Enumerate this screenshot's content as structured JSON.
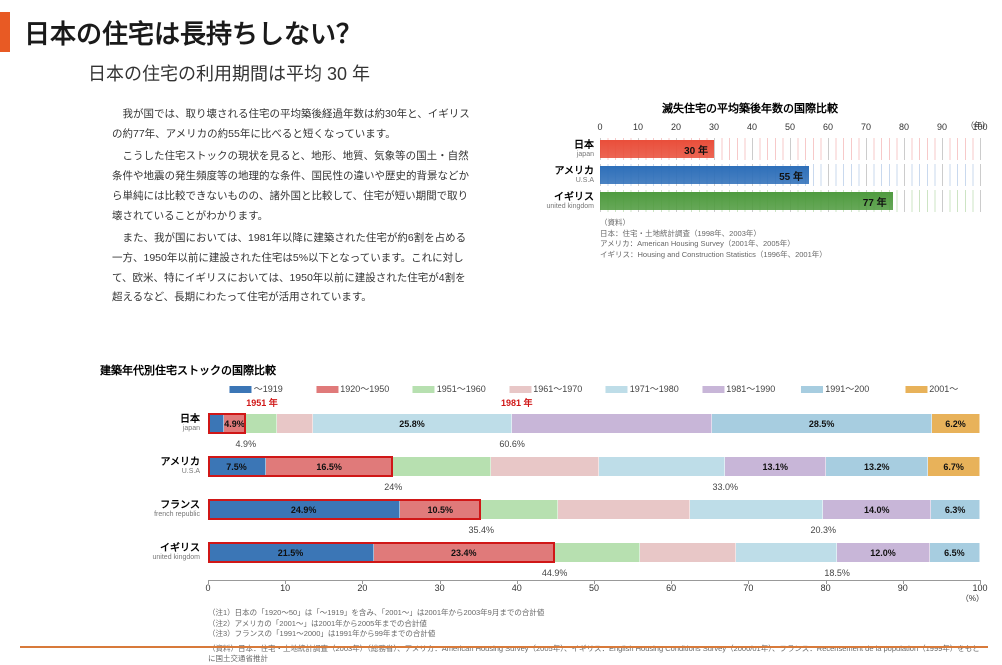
{
  "title": "日本の住宅は長持ちしない？",
  "subtitle": "日本の住宅の利用期間は平均 30 年",
  "paragraphs": [
    "我が国では、取り壊される住宅の平均築後経過年数は約30年と、イギリスの約77年、アメリカの約55年に比べると短くなっています。",
    "こうした住宅ストックの現状を見ると、地形、地質、気象等の国土・自然条件や地震の発生頻度等の地理的な条件、国民性の違いや歴史的背景などから単純には比較できないものの、諸外国と比較して、住宅が短い期間で取り壊されていることがわかります。",
    "また、我が国においては、1981年以降に建築された住宅が約6割を占める一方、1950年以前に建設された住宅は5%以下となっています。これに対して、欧米、特にイギリスにおいては、1950年以前に建設された住宅が4割を超えるなど、長期にわたって住宅が活用されています。"
  ],
  "chart1": {
    "title": "滅失住宅の平均築後年数の国際比較",
    "type": "bar",
    "xmax": 100,
    "xtick_step": 10,
    "x_unit": "（年）",
    "background": "#ffffff",
    "bars": [
      {
        "country": "日本",
        "country_en": "japan",
        "value": 30,
        "label": "30 年",
        "color": "#e94e3a",
        "tint": "#f7c9c9"
      },
      {
        "country": "アメリカ",
        "country_en": "U.S.A",
        "value": 55,
        "label": "55 年",
        "color": "#2e6fb9",
        "tint": "#c9d9ee"
      },
      {
        "country": "イギリス",
        "country_en": "united kingdom",
        "value": 77,
        "label": "77 年",
        "color": "#4f9b3f",
        "tint": "#cde4c4"
      }
    ],
    "sources_heading": "（資料）",
    "sources": [
      "日本：住宅・土地統計調査（1998年、2003年）",
      "アメリカ：American Housing Survey（2001年、2005年）",
      "イギリス：Housing and Construction Statistics（1996年、2001年）"
    ]
  },
  "chart2": {
    "title": "建築年代別住宅ストックの国際比較",
    "type": "stacked-bar",
    "legend": [
      {
        "label": "～1919",
        "color": "#3b76b6"
      },
      {
        "label": "1920～1950",
        "color": "#e07a7a"
      },
      {
        "label": "1951～1960",
        "color": "#b7e0b0"
      },
      {
        "label": "1961～1970",
        "color": "#e8c7c7"
      },
      {
        "label": "1971～1980",
        "color": "#bedde8"
      },
      {
        "label": "1981～1990",
        "color": "#c8b6d8"
      },
      {
        "label": "1991～200",
        "color": "#a7cde0"
      },
      {
        "label": "2001～",
        "color": "#e8b25a"
      }
    ],
    "annotations": [
      {
        "label": "1951 年",
        "at_pct": 7
      },
      {
        "label": "1981 年",
        "at_pct": 40
      }
    ],
    "xmax": 100,
    "xtick_step": 10,
    "x_unit": "（%）",
    "rows": [
      {
        "country": "日本",
        "country_en": "japan",
        "segments": [
          {
            "pct": 2.1,
            "label": "",
            "color": "#3b76b6"
          },
          {
            "pct": 2.8,
            "label": "4.9%",
            "color": "#e07a7a"
          },
          {
            "pct": 4.0,
            "label": "",
            "color": "#b7e0b0"
          },
          {
            "pct": 4.7,
            "label": "",
            "color": "#e8c7c7"
          },
          {
            "pct": 25.8,
            "label": "25.8%",
            "color": "#bedde8"
          },
          {
            "pct": 25.9,
            "label": "",
            "color": "#c8b6d8"
          },
          {
            "pct": 28.5,
            "label": "28.5%",
            "color": "#a7cde0"
          },
          {
            "pct": 6.2,
            "label": "6.2%",
            "color": "#e8b25a"
          }
        ],
        "cum_labels": [
          {
            "pct": 4.9,
            "text": "4.9%"
          },
          {
            "pct": 39.4,
            "text": "60.6%"
          }
        ],
        "highlight_until_pct": 4.9
      },
      {
        "country": "アメリカ",
        "country_en": "U.S.A",
        "segments": [
          {
            "pct": 7.5,
            "label": "7.5%",
            "color": "#3b76b6"
          },
          {
            "pct": 16.5,
            "label": "16.5%",
            "color": "#e07a7a"
          },
          {
            "pct": 12.6,
            "label": "",
            "color": "#b7e0b0"
          },
          {
            "pct": 14.0,
            "label": "",
            "color": "#e8c7c7"
          },
          {
            "pct": 16.4,
            "label": "",
            "color": "#bedde8"
          },
          {
            "pct": 13.1,
            "label": "13.1%",
            "color": "#c8b6d8"
          },
          {
            "pct": 13.2,
            "label": "13.2%",
            "color": "#a7cde0"
          },
          {
            "pct": 6.7,
            "label": "6.7%",
            "color": "#e8b25a"
          }
        ],
        "cum_labels": [
          {
            "pct": 24,
            "text": "24%"
          },
          {
            "pct": 67,
            "text": "33.0%"
          }
        ],
        "highlight_until_pct": 24
      },
      {
        "country": "フランス",
        "country_en": "french republic",
        "segments": [
          {
            "pct": 24.9,
            "label": "24.9%",
            "color": "#3b76b6"
          },
          {
            "pct": 10.5,
            "label": "10.5%",
            "color": "#e07a7a"
          },
          {
            "pct": 10.0,
            "label": "",
            "color": "#b7e0b0"
          },
          {
            "pct": 17.0,
            "label": "",
            "color": "#e8c7c7"
          },
          {
            "pct": 17.3,
            "label": "",
            "color": "#bedde8"
          },
          {
            "pct": 14.0,
            "label": "14.0%",
            "color": "#c8b6d8"
          },
          {
            "pct": 6.3,
            "label": "6.3%",
            "color": "#a7cde0"
          }
        ],
        "cum_labels": [
          {
            "pct": 35.4,
            "text": "35.4%"
          },
          {
            "pct": 79.7,
            "text": "20.3%"
          }
        ],
        "highlight_until_pct": 35.4
      },
      {
        "country": "イギリス",
        "country_en": "united kingdom",
        "segments": [
          {
            "pct": 21.5,
            "label": "21.5%",
            "color": "#3b76b6"
          },
          {
            "pct": 23.4,
            "label": "23.4%",
            "color": "#e07a7a"
          },
          {
            "pct": 11.0,
            "label": "",
            "color": "#b7e0b0"
          },
          {
            "pct": 12.5,
            "label": "",
            "color": "#e8c7c7"
          },
          {
            "pct": 13.1,
            "label": "",
            "color": "#bedde8"
          },
          {
            "pct": 12.0,
            "label": "12.0%",
            "color": "#c8b6d8"
          },
          {
            "pct": 6.5,
            "label": "6.5%",
            "color": "#a7cde0"
          }
        ],
        "cum_labels": [
          {
            "pct": 44.9,
            "text": "44.9%"
          },
          {
            "pct": 81.5,
            "text": "18.5%"
          }
        ],
        "highlight_until_pct": 44.9
      }
    ],
    "notes": [
      "（注1）日本の「1920～50」は「～1919」を含み、「2001～」は2001年から2003年9月までの合計値",
      "（注2）アメリカの「2001～」は2001年から2005年までの合計値",
      "（注3）フランスの「1991～2000」は1991年から99年までの合計値"
    ],
    "sources": "（資料）日本：住宅・土地統計調査（2003年）（総務省）、アメリカ：American Housing Survey（2005年）、イギリス：English Housing Conditions Survey（2000/01年）、フランス：Recensement de la population（1999年）をもとに国土交通省推計"
  }
}
